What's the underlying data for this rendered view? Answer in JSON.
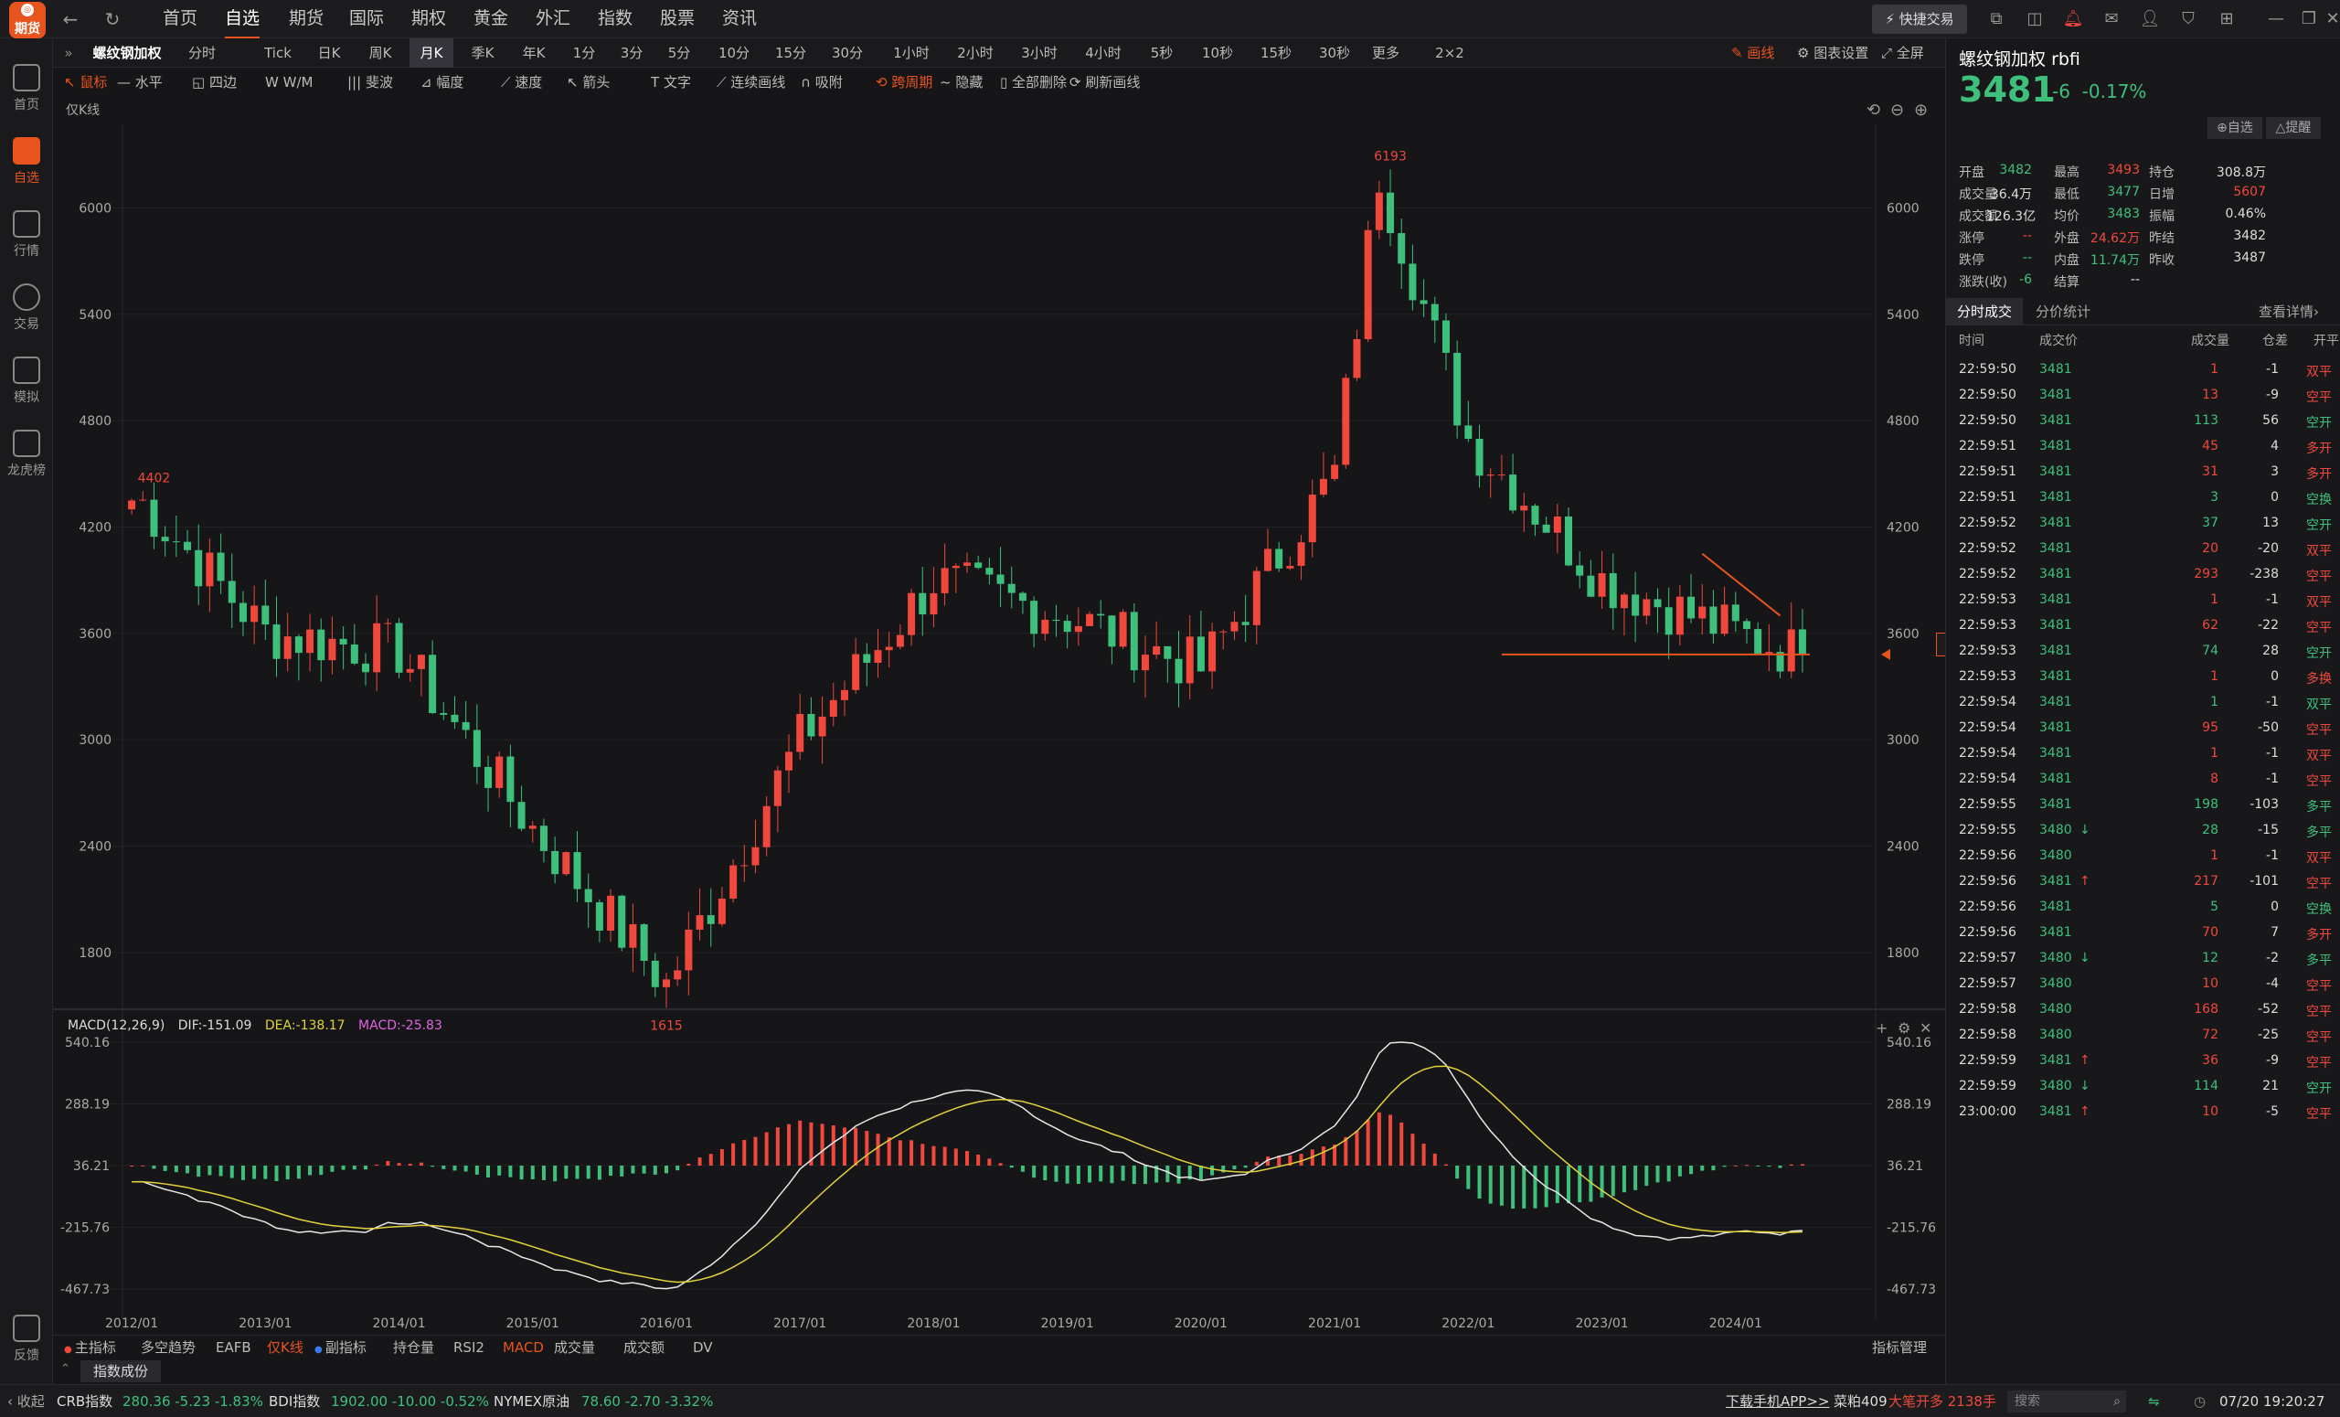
{
  "nav": {
    "logo_text": "期货",
    "items": [
      "首页",
      "自选",
      "期货",
      "国际",
      "期权",
      "黄金",
      "外汇",
      "指数",
      "股票",
      "资讯"
    ],
    "active": "自选",
    "quick_trade": "快捷交易"
  },
  "sidebar": [
    {
      "label": "首页"
    },
    {
      "label": "自选"
    },
    {
      "label": "行情"
    },
    {
      "label": "交易"
    },
    {
      "label": "模拟"
    },
    {
      "label": "龙虎榜"
    },
    {
      "label": "反馈"
    }
  ],
  "periodbar": {
    "instrument": "螺纹钢加权",
    "periods": [
      "分时",
      "Tick",
      "日K",
      "周K",
      "月K",
      "季K",
      "年K",
      "1分",
      "3分",
      "5分",
      "10分",
      "15分",
      "30分",
      "1小时",
      "2小时",
      "3小时",
      "4小时",
      "5秒",
      "10秒",
      "15秒",
      "30秒",
      "更多",
      "2×2"
    ],
    "active": "月K",
    "draw": "画线",
    "chart_settings": "图表设置",
    "fullscreen": "全屏",
    "hide": "隐藏"
  },
  "drawtools": [
    "鼠标",
    "水平",
    "四边",
    "W/M",
    "斐波",
    "幅度",
    "速度",
    "箭头",
    "文字",
    "连续画线",
    "吸附",
    "跨周期",
    "隐藏",
    "全部删除",
    "刷新画线"
  ],
  "chart": {
    "kline_label": "仅K线",
    "high_label": "6193",
    "low_label": "1615",
    "start_label": "4402",
    "last_price": "3481",
    "price_ticks": [
      "6000",
      "5400",
      "4800",
      "4200",
      "3600",
      "3000",
      "2400",
      "1800"
    ],
    "macd_ticks": [
      "540.16",
      "288.19",
      "36.21",
      "-215.76",
      "-467.73"
    ],
    "x_ticks": [
      "2012/01",
      "2013/01",
      "2014/01",
      "2015/01",
      "2016/01",
      "2017/01",
      "2018/01",
      "2019/01",
      "2020/01",
      "2021/01",
      "2022/01",
      "2023/01",
      "2024/01"
    ],
    "macd_header": {
      "name": "MACD(12,26,9)",
      "dif": "DIF:-151.09",
      "dea": "DEA:-138.17",
      "macd": "MACD:-25.83"
    },
    "colors": {
      "up": "#f0483c",
      "down": "#3ec07c",
      "dif": "#e8e8e8",
      "dea": "#e0d23a"
    }
  },
  "chart_data": {
    "type": "candlestick",
    "title": "螺纹钢加权 月K",
    "ylim": [
      1500,
      6400
    ],
    "anchors": [
      [
        "2012/01",
        4402
      ],
      [
        "2013/01",
        3600
      ],
      [
        "2014/01",
        3500
      ],
      [
        "2015/01",
        2500
      ],
      [
        "2016/01",
        1615
      ],
      [
        "2017/01",
        3000
      ],
      [
        "2018/01",
        3900
      ],
      [
        "2019/01",
        3700
      ],
      [
        "2020/01",
        3400
      ],
      [
        "2021/01",
        4500
      ],
      [
        "2021/05",
        6193
      ],
      [
        "2022/01",
        4700
      ],
      [
        "2023/01",
        3900
      ],
      [
        "2024/01",
        3600
      ],
      [
        "2024/07",
        3481
      ]
    ]
  },
  "indicators": {
    "items": [
      "主指标",
      "多空趋势",
      "EAFB",
      "仅K线",
      "副指标",
      "持仓量",
      "RSI2",
      "MACD",
      "成交量",
      "成交额",
      "DV"
    ],
    "active": [
      "仅K线",
      "MACD"
    ],
    "manage": "指标管理",
    "component_tab": "指数成份"
  },
  "quote": {
    "name": "螺纹钢加权",
    "code": "rbfi",
    "price": "3481",
    "change": "-6",
    "change_pct": "-0.17%",
    "fav": "自选",
    "alert": "提醒",
    "rows": [
      [
        [
          "开盘",
          "3482",
          "dn"
        ],
        [
          "最高",
          "3493",
          "up"
        ],
        [
          "持仓",
          "308.8万",
          "ne"
        ]
      ],
      [
        [
          "成交量",
          "36.4万",
          "ne"
        ],
        [
          "最低",
          "3477",
          "dn"
        ],
        [
          "日增",
          "5607",
          "up"
        ]
      ],
      [
        [
          "成交额",
          "126.3亿",
          "ne"
        ],
        [
          "均价",
          "3483",
          "dn"
        ],
        [
          "振幅",
          "0.46%",
          "ne"
        ]
      ],
      [
        [
          "涨停",
          "--",
          "up"
        ],
        [
          "外盘",
          "24.62万",
          "up"
        ],
        [
          "昨结",
          "3482",
          "ne"
        ]
      ],
      [
        [
          "跌停",
          "--",
          "dn"
        ],
        [
          "内盘",
          "11.74万",
          "dn"
        ],
        [
          "昨收",
          "3487",
          "ne"
        ]
      ],
      [
        [
          "涨跌(收)",
          "-6",
          "dn"
        ],
        [
          "结算",
          "--",
          "ne"
        ],
        [
          "",
          "",
          "ne"
        ]
      ]
    ]
  },
  "trades": {
    "tabs": [
      "分时成交",
      "分价统计"
    ],
    "see_more": "查看详情",
    "headers": [
      "时间",
      "成交价",
      "成交量",
      "仓差",
      "开平"
    ],
    "rows": [
      [
        "22:59:50",
        "3481",
        "",
        "1",
        "-1",
        "双平",
        "up",
        "up"
      ],
      [
        "22:59:50",
        "3481",
        "",
        "13",
        "-9",
        "空平",
        "up",
        "up"
      ],
      [
        "22:59:50",
        "3481",
        "",
        "113",
        "56",
        "空开",
        "dn",
        "dn"
      ],
      [
        "22:59:51",
        "3481",
        "",
        "45",
        "4",
        "多开",
        "up",
        "up"
      ],
      [
        "22:59:51",
        "3481",
        "",
        "31",
        "3",
        "多开",
        "up",
        "up"
      ],
      [
        "22:59:51",
        "3481",
        "",
        "3",
        "0",
        "空换",
        "dn",
        "dn"
      ],
      [
        "22:59:52",
        "3481",
        "",
        "37",
        "13",
        "空开",
        "dn",
        "dn"
      ],
      [
        "22:59:52",
        "3481",
        "",
        "20",
        "-20",
        "双平",
        "up",
        "up"
      ],
      [
        "22:59:52",
        "3481",
        "",
        "293",
        "-238",
        "空平",
        "up",
        "up"
      ],
      [
        "22:59:53",
        "3481",
        "",
        "1",
        "-1",
        "双平",
        "up",
        "up"
      ],
      [
        "22:59:53",
        "3481",
        "",
        "62",
        "-22",
        "空平",
        "up",
        "up"
      ],
      [
        "22:59:53",
        "3481",
        "",
        "74",
        "28",
        "空开",
        "dn",
        "dn"
      ],
      [
        "22:59:53",
        "3481",
        "",
        "1",
        "0",
        "多换",
        "up",
        "up"
      ],
      [
        "22:59:54",
        "3481",
        "",
        "1",
        "-1",
        "双平",
        "dn",
        "dn"
      ],
      [
        "22:59:54",
        "3481",
        "",
        "95",
        "-50",
        "空平",
        "up",
        "up"
      ],
      [
        "22:59:54",
        "3481",
        "",
        "1",
        "-1",
        "双平",
        "up",
        "up"
      ],
      [
        "22:59:54",
        "3481",
        "",
        "8",
        "-1",
        "空平",
        "up",
        "up"
      ],
      [
        "22:59:55",
        "3481",
        "",
        "198",
        "-103",
        "多平",
        "dn",
        "dn"
      ],
      [
        "22:59:55",
        "3480",
        "↓",
        "28",
        "-15",
        "多平",
        "dn",
        "dn"
      ],
      [
        "22:59:56",
        "3480",
        "",
        "1",
        "-1",
        "双平",
        "up",
        "up"
      ],
      [
        "22:59:56",
        "3481",
        "↑",
        "217",
        "-101",
        "空平",
        "up",
        "up"
      ],
      [
        "22:59:56",
        "3481",
        "",
        "5",
        "0",
        "空换",
        "dn",
        "dn"
      ],
      [
        "22:59:56",
        "3481",
        "",
        "70",
        "7",
        "多开",
        "up",
        "up"
      ],
      [
        "22:59:57",
        "3480",
        "↓",
        "12",
        "-2",
        "多平",
        "dn",
        "dn"
      ],
      [
        "22:59:57",
        "3480",
        "",
        "10",
        "-4",
        "空平",
        "up",
        "up"
      ],
      [
        "22:59:58",
        "3480",
        "",
        "168",
        "-52",
        "空平",
        "up",
        "up"
      ],
      [
        "22:59:58",
        "3480",
        "",
        "72",
        "-25",
        "空平",
        "up",
        "up"
      ],
      [
        "22:59:59",
        "3481",
        "↑",
        "36",
        "-9",
        "空平",
        "up",
        "up"
      ],
      [
        "22:59:59",
        "3480",
        "↓",
        "114",
        "21",
        "空开",
        "dn",
        "dn"
      ],
      [
        "23:00:00",
        "3481",
        "↑",
        "10",
        "-5",
        "空平",
        "up",
        "up"
      ]
    ]
  },
  "status": {
    "collapse": "收起",
    "crb_name": "CRB指数",
    "crb_val": "280.36 -5.23 -1.83%",
    "bdi_name": "BDI指数",
    "bdi_val": "1902.00 -10.00 -0.52%",
    "nymex_name": "NYMEX原油",
    "nymex_val": "78.60 -2.70 -3.32%",
    "download": "下载手机APP>>",
    "feed_name": "菜粕409",
    "feed_val": "大笔开多 2138手",
    "search": "搜索",
    "datetime": "07/20 19:20:27"
  }
}
